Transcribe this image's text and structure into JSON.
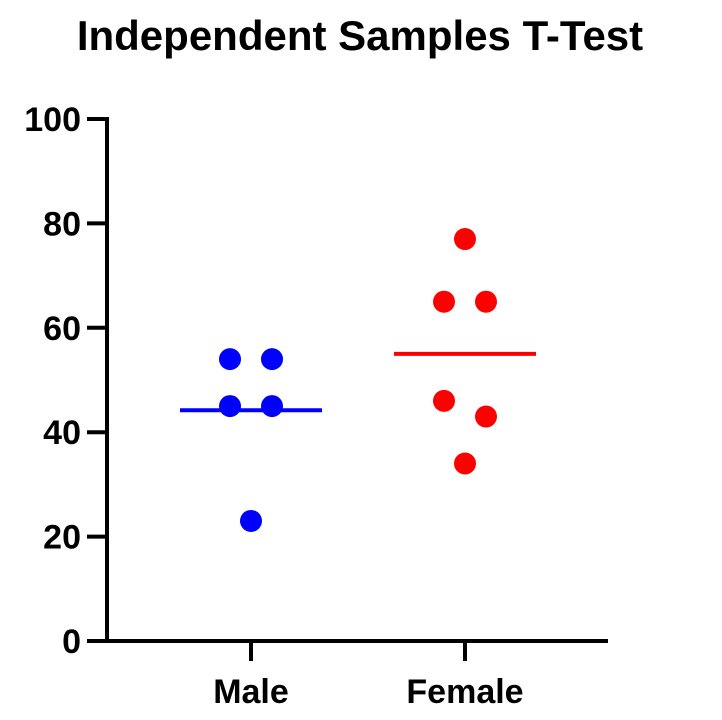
{
  "chart_data": {
    "type": "scatter",
    "title": "Independent Samples T-Test",
    "xlabel": "",
    "ylabel": "",
    "ylim": [
      0,
      100
    ],
    "yticks": [
      0,
      20,
      40,
      60,
      80,
      100
    ],
    "categories": [
      "Male",
      "Female"
    ],
    "grid": false,
    "legend": "none",
    "series": [
      {
        "category": "Male",
        "color": "#0000ff",
        "points": [
          54,
          54,
          45,
          45,
          23
        ],
        "mean": 44.2
      },
      {
        "category": "Female",
        "color": "#ff0000",
        "points": [
          77,
          65,
          65,
          46,
          43,
          34
        ],
        "mean": 55
      }
    ]
  }
}
